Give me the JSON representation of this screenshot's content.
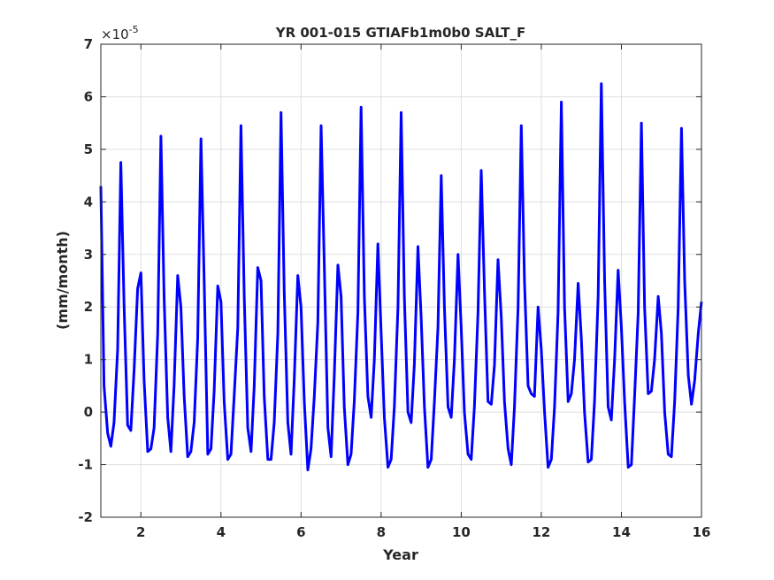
{
  "chart_data": {
    "type": "line",
    "title": "YR 001-015 GTIAFb1m0b0 SALT_F",
    "xlabel": "Year",
    "ylabel": "(mm/month)",
    "exponent": {
      "base": "×10",
      "power": "-5"
    },
    "xlim": [
      1,
      16
    ],
    "ylim": [
      -2,
      7
    ],
    "xticks": [
      2,
      4,
      6,
      8,
      10,
      12,
      14,
      16
    ],
    "yticks": [
      -2,
      -1,
      0,
      1,
      2,
      3,
      4,
      5,
      6,
      7
    ],
    "grid": true,
    "series": [
      {
        "color": "#0000ff",
        "x": [
          1.0,
          1.08,
          1.17,
          1.25,
          1.33,
          1.42,
          1.5,
          1.58,
          1.67,
          1.75,
          1.83,
          1.92,
          2.0,
          2.08,
          2.17,
          2.25,
          2.33,
          2.42,
          2.5,
          2.58,
          2.67,
          2.75,
          2.83,
          2.92,
          3.0,
          3.08,
          3.17,
          3.25,
          3.33,
          3.42,
          3.5,
          3.58,
          3.67,
          3.75,
          3.83,
          3.92,
          4.0,
          4.08,
          4.17,
          4.25,
          4.33,
          4.42,
          4.5,
          4.58,
          4.67,
          4.75,
          4.83,
          4.92,
          5.0,
          5.08,
          5.17,
          5.25,
          5.33,
          5.42,
          5.5,
          5.58,
          5.67,
          5.75,
          5.83,
          5.92,
          6.0,
          6.08,
          6.17,
          6.25,
          6.33,
          6.42,
          6.5,
          6.58,
          6.67,
          6.75,
          6.83,
          6.92,
          7.0,
          7.08,
          7.17,
          7.25,
          7.33,
          7.42,
          7.5,
          7.58,
          7.67,
          7.75,
          7.83,
          7.92,
          8.0,
          8.08,
          8.17,
          8.25,
          8.33,
          8.42,
          8.5,
          8.58,
          8.67,
          8.75,
          8.83,
          8.92,
          9.0,
          9.08,
          9.17,
          9.25,
          9.33,
          9.42,
          9.5,
          9.58,
          9.67,
          9.75,
          9.83,
          9.92,
          10.0,
          10.08,
          10.17,
          10.25,
          10.33,
          10.42,
          10.5,
          10.58,
          10.67,
          10.75,
          10.83,
          10.92,
          11.0,
          11.08,
          11.17,
          11.25,
          11.33,
          11.42,
          11.5,
          11.58,
          11.67,
          11.75,
          11.83,
          11.92,
          12.0,
          12.08,
          12.17,
          12.25,
          12.33,
          12.42,
          12.5,
          12.58,
          12.67,
          12.75,
          12.83,
          12.92,
          13.0,
          13.08,
          13.17,
          13.25,
          13.33,
          13.42,
          13.5,
          13.58,
          13.67,
          13.75,
          13.83,
          13.92,
          14.0,
          14.08,
          14.17,
          14.25,
          14.33,
          14.42,
          14.5,
          14.58,
          14.67,
          14.75,
          14.83,
          14.92,
          15.0,
          15.08,
          15.17,
          15.25,
          15.33,
          15.42,
          15.5,
          15.58,
          15.67,
          15.75,
          15.83,
          15.92,
          16.0
        ],
        "y": [
          4.3,
          0.5,
          -0.4,
          -0.65,
          -0.2,
          1.2,
          4.75,
          2.0,
          -0.25,
          -0.35,
          0.8,
          2.35,
          2.65,
          0.6,
          -0.75,
          -0.7,
          -0.3,
          1.5,
          5.25,
          2.2,
          -0.1,
          -0.75,
          0.5,
          2.6,
          2.0,
          0.3,
          -0.85,
          -0.75,
          -0.2,
          1.4,
          5.2,
          2.5,
          -0.8,
          -0.7,
          0.4,
          2.4,
          2.1,
          0.2,
          -0.9,
          -0.8,
          0.3,
          1.6,
          5.45,
          2.2,
          -0.3,
          -0.75,
          0.5,
          2.75,
          2.5,
          0.3,
          -0.9,
          -0.9,
          -0.2,
          1.5,
          5.7,
          2.3,
          -0.2,
          -0.8,
          0.6,
          2.6,
          2.0,
          0.2,
          -1.1,
          -0.7,
          0.3,
          1.7,
          5.45,
          2.8,
          -0.3,
          -0.85,
          0.7,
          2.8,
          2.2,
          0.1,
          -1.0,
          -0.8,
          0.2,
          1.9,
          5.8,
          2.2,
          0.3,
          -0.1,
          1.0,
          3.2,
          1.5,
          -0.1,
          -1.05,
          -0.9,
          0.1,
          2.0,
          5.7,
          2.2,
          0.0,
          -0.2,
          0.9,
          3.15,
          1.8,
          0.1,
          -1.05,
          -0.9,
          0.2,
          1.6,
          4.5,
          2.0,
          0.1,
          -0.1,
          1.0,
          3.0,
          1.6,
          0.0,
          -0.8,
          -0.9,
          0.1,
          1.9,
          4.6,
          2.3,
          0.2,
          0.15,
          0.9,
          2.9,
          1.8,
          0.2,
          -0.7,
          -1.0,
          0.1,
          2.0,
          5.45,
          2.5,
          0.5,
          0.35,
          0.3,
          2.0,
          1.2,
          0.0,
          -1.05,
          -0.9,
          0.1,
          1.9,
          5.9,
          2.0,
          0.2,
          0.35,
          1.0,
          2.45,
          1.4,
          0.0,
          -0.95,
          -0.9,
          0.2,
          2.2,
          6.25,
          2.5,
          0.1,
          -0.15,
          1.0,
          2.7,
          1.6,
          0.2,
          -1.05,
          -1.0,
          0.3,
          1.9,
          5.5,
          2.0,
          0.35,
          0.4,
          1.0,
          2.2,
          1.5,
          0.0,
          -0.8,
          -0.85,
          0.2,
          2.0,
          5.4,
          2.5,
          0.7,
          0.15,
          0.6,
          1.5,
          2.1
        ]
      }
    ]
  }
}
